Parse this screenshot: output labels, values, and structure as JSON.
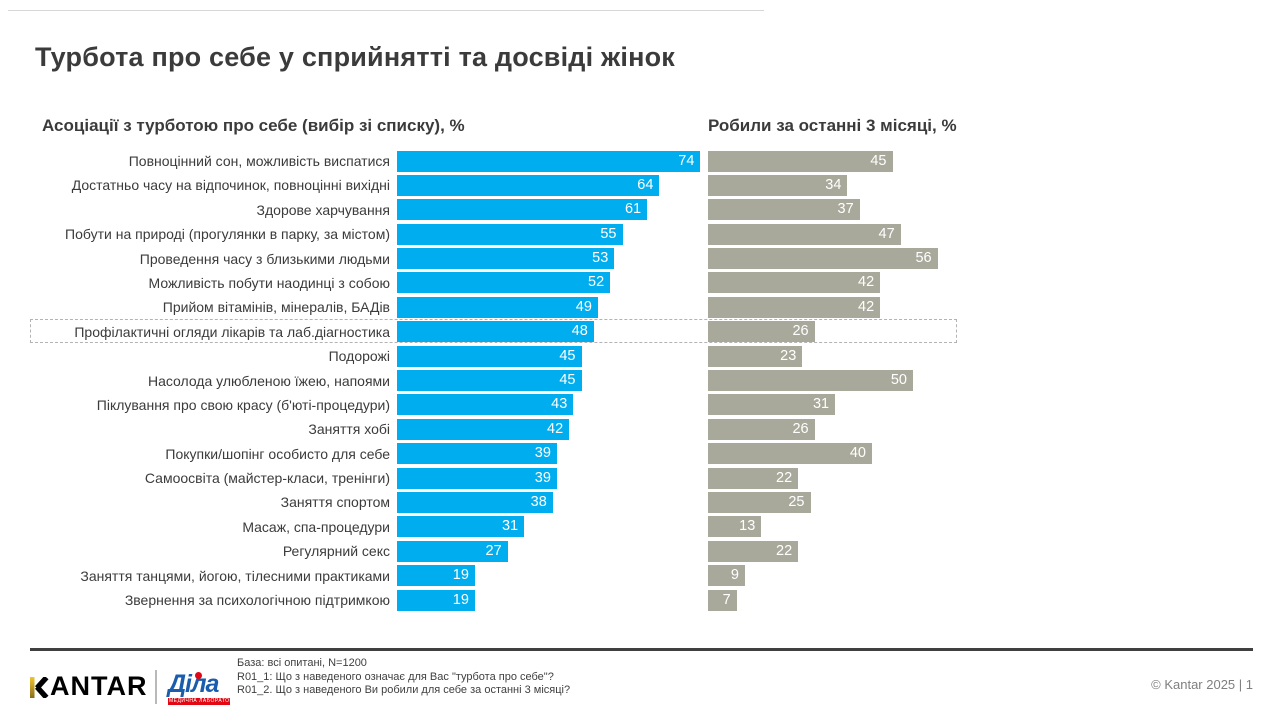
{
  "slide": {
    "title": "Турбота про себе у сприйнятті та досвіді жінок",
    "footer": {
      "base_note": "База: всі опитані, N=1200",
      "q1_note": "R01_1: Що з наведеного означає для Вас \"турбота про себе\"?",
      "q2_note": "R01_2. Що з наведеного Ви робили для себе за останні 3 місяці?",
      "copyright": "© Kantar 2025 | 1",
      "kantar_logo_text": "ANTAR",
      "dila_logo_text": "Діла",
      "dila_logo_tagline": "МЕДИЧНА ЛАБОРАТОРІЯ"
    }
  },
  "chart_data": {
    "type": "bar",
    "orientation": "horizontal",
    "title": "Турбота про себе у сприйнятті та досвіді жінок",
    "categories": [
      "Повноцінний сон, можливість виспатися",
      "Достатньо часу на відпочинок, повноцінні вихідні",
      "Здорове харчування",
      "Побути на природі (прогулянки в парку, за містом)",
      "Проведення часу з близькими людьми",
      "Можливість побути наодинці з собою",
      "Прийом вітамінів, мінералів, БАДів",
      "Профілактичні огляди лікарів та лаб.діагностика",
      "Подорожі",
      "Насолода улюбленою їжею, напоями",
      "Піклування про свою красу (б'юті-процедури)",
      "Заняття хобі",
      "Покупки/шопінг особисто для себе",
      "Самоосвіта (майстер-класи, тренінги)",
      "Заняття спортом",
      "Масаж, спа-процедури",
      "Регулярний секс",
      "Заняття танцями, йогою, тілесними практиками",
      "Звернення за психологічною підтримкою"
    ],
    "series": [
      {
        "name": "Асоціації з турботою про себе (вибір зі списку), %",
        "color": "#00AEEF",
        "values": [
          74,
          64,
          61,
          55,
          53,
          52,
          49,
          48,
          45,
          45,
          43,
          42,
          39,
          39,
          38,
          31,
          27,
          19,
          19
        ]
      },
      {
        "name": "Робили за останні 3 місяці, %",
        "color": "#A8A89B",
        "values": [
          45,
          34,
          37,
          47,
          56,
          42,
          42,
          26,
          23,
          50,
          31,
          26,
          40,
          22,
          25,
          13,
          22,
          9,
          7
        ]
      }
    ],
    "value_labels": "inside-end",
    "xlim": [
      0,
      100
    ],
    "grid": false,
    "legend_position": "column-headers",
    "highlight": {
      "category_index": 7,
      "category": "Профілактичні огляди лікарів та лаб.діагностика"
    }
  }
}
